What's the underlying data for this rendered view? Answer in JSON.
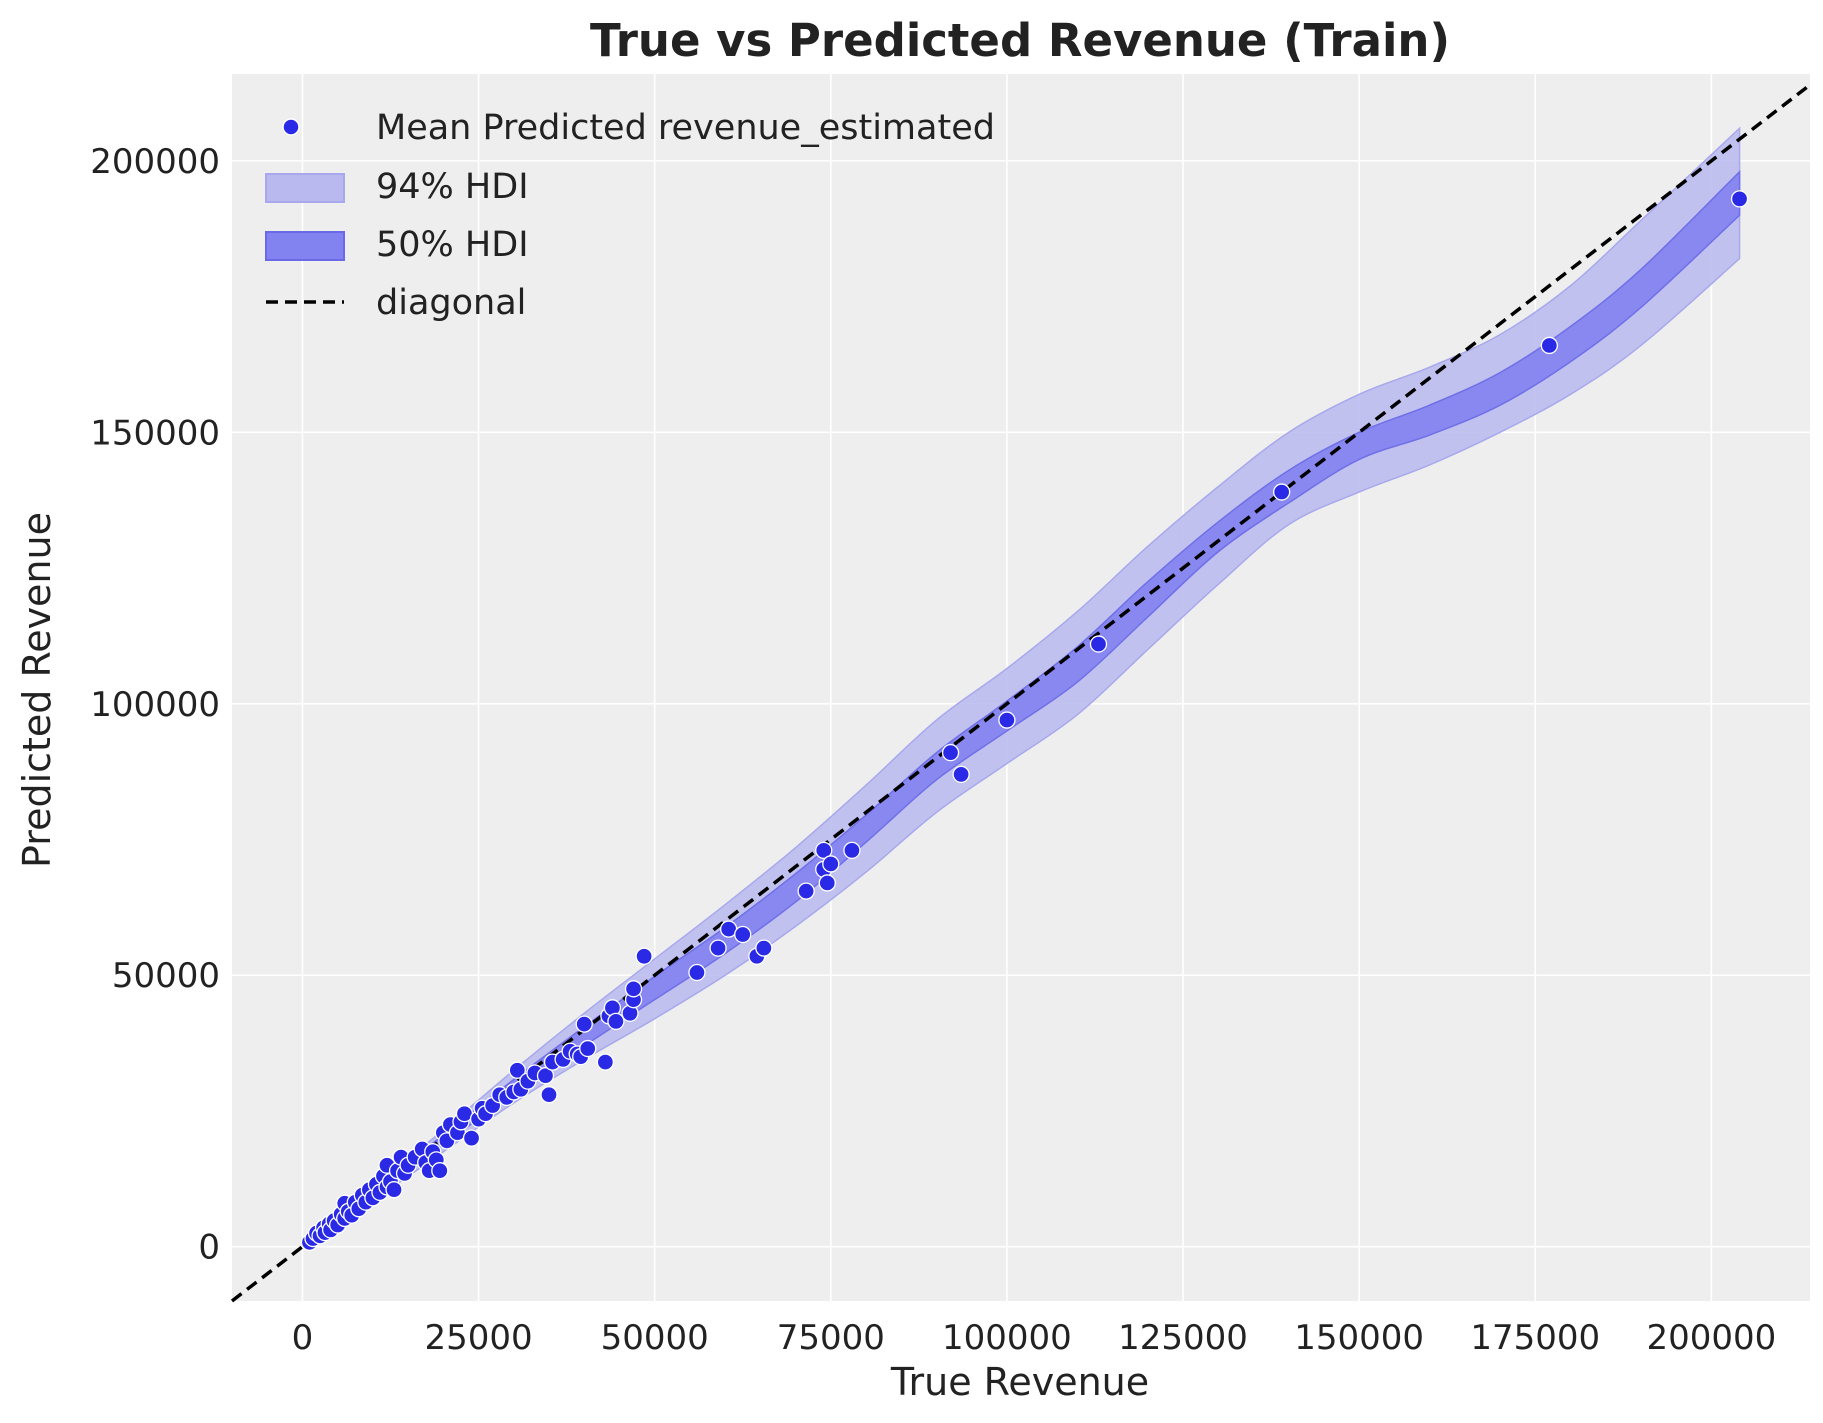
{
  "colors": {
    "background": "#eeeeee",
    "grid": "#ffffff",
    "point": "#2a2ae6",
    "hdi94": "#b9b9f0",
    "hdi50": "#8282f0",
    "diagonal": "#000000"
  },
  "chart_data": {
    "type": "scatter",
    "title": "True vs Predicted Revenue (Train)",
    "xlabel": "True Revenue",
    "ylabel": "Predicted Revenue",
    "xlim": [
      -10000,
      214000
    ],
    "ylim": [
      -10000,
      216000
    ],
    "xticks": [
      0,
      25000,
      50000,
      75000,
      100000,
      125000,
      150000,
      175000,
      200000
    ],
    "yticks": [
      0,
      50000,
      100000,
      150000,
      200000
    ],
    "grid": true,
    "legend_position": "top-left",
    "legend": {
      "points": "Mean Predicted revenue_estimated",
      "hdi94": "94% HDI",
      "hdi50": "50% HDI",
      "diagonal": "diagonal"
    },
    "band_x": [
      0,
      10000,
      20000,
      30000,
      40000,
      50000,
      60000,
      70000,
      80000,
      90000,
      100000,
      110000,
      120000,
      130000,
      140000,
      150000,
      160000,
      170000,
      180000,
      190000,
      204000
    ],
    "hdi94_lower": [
      0,
      8500,
      17500,
      26500,
      34500,
      42000,
      50000,
      59000,
      69000,
      80000,
      89000,
      98000,
      110000,
      122000,
      133000,
      139000,
      144000,
      150000,
      157000,
      166000,
      182000
    ],
    "hdi94_upper": [
      0,
      11000,
      21500,
      32500,
      43000,
      53000,
      63000,
      73500,
      85000,
      97000,
      106500,
      117000,
      129000,
      140000,
      150000,
      157000,
      162000,
      168000,
      177000,
      189000,
      206000
    ],
    "hdi50_lower": [
      0,
      9300,
      18800,
      28300,
      37000,
      45500,
      54000,
      63500,
      74500,
      86000,
      95000,
      104000,
      116000,
      128000,
      137000,
      145000,
      149500,
      155000,
      163000,
      173000,
      190000
    ],
    "hdi50_upper": [
      0,
      10400,
      20600,
      30800,
      40500,
      49800,
      58800,
      68700,
      79500,
      91000,
      100500,
      110500,
      122500,
      133500,
      143000,
      150000,
      155000,
      161000,
      169500,
      180000,
      198000
    ],
    "diagonal": [
      -10000,
      214000
    ],
    "points": [
      [
        1000,
        800
      ],
      [
        1500,
        1500
      ],
      [
        2000,
        2500
      ],
      [
        2500,
        2000
      ],
      [
        3000,
        3500
      ],
      [
        3200,
        2600
      ],
      [
        3800,
        4200
      ],
      [
        4000,
        3100
      ],
      [
        4500,
        4800
      ],
      [
        5000,
        4000
      ],
      [
        5500,
        6000
      ],
      [
        6000,
        5200
      ],
      [
        6000,
        8000
      ],
      [
        6500,
        6500
      ],
      [
        7000,
        5800
      ],
      [
        7500,
        8200
      ],
      [
        8000,
        7000
      ],
      [
        8500,
        9500
      ],
      [
        9000,
        8200
      ],
      [
        9500,
        10500
      ],
      [
        10000,
        9000
      ],
      [
        10500,
        11500
      ],
      [
        11000,
        10000
      ],
      [
        11500,
        13000
      ],
      [
        12000,
        11000
      ],
      [
        12000,
        15000
      ],
      [
        12500,
        12000
      ],
      [
        13000,
        10500
      ],
      [
        13500,
        14000
      ],
      [
        14000,
        16500
      ],
      [
        14500,
        13500
      ],
      [
        15000,
        15000
      ],
      [
        16000,
        16500
      ],
      [
        17000,
        18000
      ],
      [
        17500,
        15500
      ],
      [
        18000,
        14000
      ],
      [
        18500,
        17500
      ],
      [
        19000,
        16000
      ],
      [
        19500,
        14000
      ],
      [
        20000,
        21000
      ],
      [
        20500,
        19500
      ],
      [
        21000,
        22500
      ],
      [
        22000,
        21000
      ],
      [
        22500,
        23000
      ],
      [
        23000,
        24500
      ],
      [
        24000,
        20000
      ],
      [
        25000,
        23500
      ],
      [
        25500,
        25500
      ],
      [
        26000,
        24500
      ],
      [
        27000,
        26000
      ],
      [
        28000,
        28000
      ],
      [
        29000,
        27500
      ],
      [
        30000,
        28500
      ],
      [
        30500,
        32500
      ],
      [
        31000,
        29000
      ],
      [
        32000,
        30500
      ],
      [
        33000,
        32000
      ],
      [
        34500,
        31500
      ],
      [
        35000,
        28000
      ],
      [
        35500,
        34000
      ],
      [
        37000,
        34500
      ],
      [
        38000,
        36000
      ],
      [
        39000,
        35500
      ],
      [
        39500,
        35000
      ],
      [
        40000,
        41000
      ],
      [
        40500,
        36500
      ],
      [
        43000,
        34000
      ],
      [
        43500,
        42500
      ],
      [
        44000,
        44000
      ],
      [
        44500,
        41500
      ],
      [
        46500,
        43000
      ],
      [
        47000,
        45500
      ],
      [
        47000,
        47500
      ],
      [
        48500,
        53500
      ],
      [
        56000,
        50500
      ],
      [
        59000,
        55000
      ],
      [
        60500,
        58500
      ],
      [
        62500,
        57500
      ],
      [
        64500,
        53500
      ],
      [
        65500,
        55000
      ],
      [
        71500,
        65500
      ],
      [
        74000,
        69500
      ],
      [
        74000,
        73000
      ],
      [
        74500,
        67000
      ],
      [
        75000,
        70500
      ],
      [
        78000,
        73000
      ],
      [
        92000,
        91000
      ],
      [
        93500,
        87000
      ],
      [
        100000,
        97000
      ],
      [
        113000,
        111000
      ],
      [
        139000,
        139000
      ],
      [
        177000,
        166000
      ],
      [
        204000,
        193000
      ]
    ]
  }
}
